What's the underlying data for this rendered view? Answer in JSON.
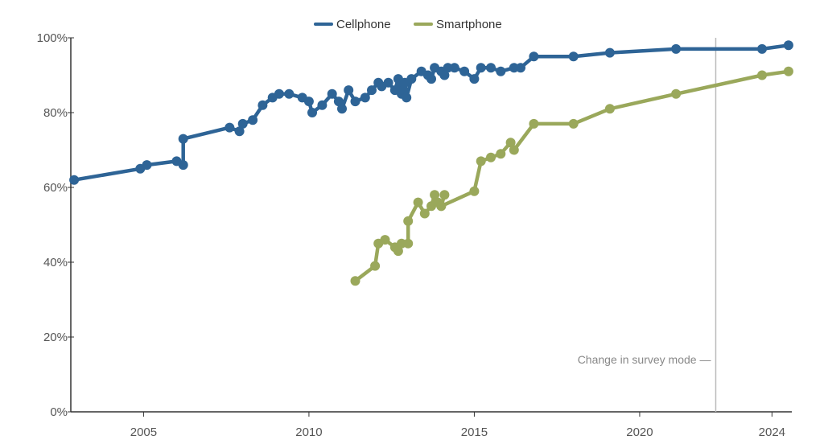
{
  "chart_data": {
    "type": "line",
    "title": "",
    "xlabel": "",
    "ylabel": "",
    "xlim": [
      2002.8,
      2024.6
    ],
    "ylim": [
      0,
      100
    ],
    "x_ticks": [
      2005,
      2010,
      2015,
      2020,
      2024
    ],
    "y_ticks": [
      0,
      20,
      40,
      60,
      80,
      100
    ],
    "y_tick_labels": [
      "0%",
      "20%",
      "40%",
      "60%",
      "80%",
      "100%"
    ],
    "grid": false,
    "legend": {
      "placement": "top-center"
    },
    "annotation": {
      "text": "Change in survey mode",
      "x": 2022.3
    },
    "series": [
      {
        "name": "Cellphone",
        "color": "#2e6496",
        "points": [
          [
            2002.9,
            62
          ],
          [
            2004.9,
            65
          ],
          [
            2005.1,
            66
          ],
          [
            2006.0,
            67
          ],
          [
            2006.2,
            66
          ],
          [
            2006.2,
            73
          ],
          [
            2007.6,
            76
          ],
          [
            2007.9,
            75
          ],
          [
            2008.0,
            77
          ],
          [
            2008.3,
            78
          ],
          [
            2008.6,
            82
          ],
          [
            2008.9,
            84
          ],
          [
            2009.1,
            85
          ],
          [
            2009.4,
            85
          ],
          [
            2009.8,
            84
          ],
          [
            2010.0,
            83
          ],
          [
            2010.1,
            80
          ],
          [
            2010.4,
            82
          ],
          [
            2010.7,
            85
          ],
          [
            2010.9,
            83
          ],
          [
            2011.0,
            81
          ],
          [
            2011.2,
            86
          ],
          [
            2011.4,
            83
          ],
          [
            2011.7,
            84
          ],
          [
            2011.9,
            86
          ],
          [
            2012.1,
            88
          ],
          [
            2012.2,
            87
          ],
          [
            2012.4,
            88
          ],
          [
            2012.6,
            86
          ],
          [
            2012.7,
            89
          ],
          [
            2012.75,
            87
          ],
          [
            2012.8,
            85
          ],
          [
            2012.85,
            86
          ],
          [
            2012.9,
            88
          ],
          [
            2012.95,
            84
          ],
          [
            2013.1,
            89
          ],
          [
            2013.4,
            91
          ],
          [
            2013.6,
            90
          ],
          [
            2013.7,
            89
          ],
          [
            2013.8,
            92
          ],
          [
            2014.0,
            91
          ],
          [
            2014.1,
            90
          ],
          [
            2014.2,
            92
          ],
          [
            2014.4,
            92
          ],
          [
            2014.7,
            91
          ],
          [
            2015.0,
            89
          ],
          [
            2015.2,
            92
          ],
          [
            2015.5,
            92
          ],
          [
            2015.8,
            91
          ],
          [
            2016.2,
            92
          ],
          [
            2016.4,
            92
          ],
          [
            2016.8,
            95
          ],
          [
            2018.0,
            95
          ],
          [
            2019.1,
            96
          ],
          [
            2021.1,
            97
          ],
          [
            2023.7,
            97
          ],
          [
            2024.5,
            98
          ]
        ]
      },
      {
        "name": "Smartphone",
        "color": "#9aa85b",
        "points": [
          [
            2011.4,
            35
          ],
          [
            2012.0,
            39
          ],
          [
            2012.1,
            45
          ],
          [
            2012.3,
            46
          ],
          [
            2012.6,
            44
          ],
          [
            2012.7,
            43
          ],
          [
            2012.8,
            45
          ],
          [
            2013.0,
            45
          ],
          [
            2013.0,
            51
          ],
          [
            2013.3,
            56
          ],
          [
            2013.5,
            53
          ],
          [
            2013.7,
            55
          ],
          [
            2013.8,
            58
          ],
          [
            2013.9,
            56
          ],
          [
            2014.0,
            55
          ],
          [
            2014.1,
            58
          ],
          [
            2014.0,
            55
          ],
          [
            2015.0,
            59
          ],
          [
            2015.2,
            67
          ],
          [
            2015.5,
            68
          ],
          [
            2015.8,
            69
          ],
          [
            2016.1,
            72
          ],
          [
            2016.2,
            70
          ],
          [
            2016.8,
            77
          ],
          [
            2018.0,
            77
          ],
          [
            2019.1,
            81
          ],
          [
            2021.1,
            85
          ],
          [
            2023.7,
            90
          ],
          [
            2024.5,
            91
          ]
        ]
      }
    ]
  }
}
